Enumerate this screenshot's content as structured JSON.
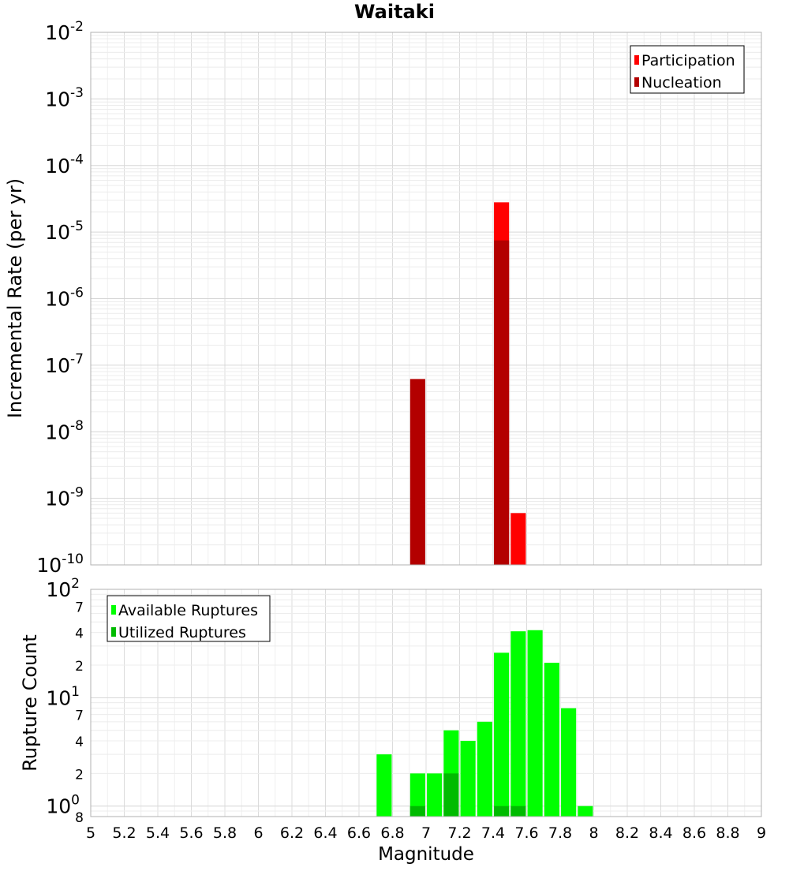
{
  "chart_data": [
    {
      "type": "bar",
      "title": "Waitaki",
      "xlabel": "",
      "ylabel": "Incremental Rate (per yr)",
      "y_scale": "log",
      "ylim": [
        1e-10,
        0.01
      ],
      "xlim": [
        5,
        9
      ],
      "grid": true,
      "legend_position": "top-right",
      "bar_width": 0.09,
      "y_tick_labels": [
        {
          "base": "10",
          "exp": "-10",
          "value": 1e-10
        },
        {
          "base": "10",
          "exp": "-9",
          "value": 1e-09
        },
        {
          "base": "10",
          "exp": "-8",
          "value": 1e-08
        },
        {
          "base": "10",
          "exp": "-7",
          "value": 1e-07
        },
        {
          "base": "10",
          "exp": "-6",
          "value": 1e-06
        },
        {
          "base": "10",
          "exp": "-5",
          "value": 1e-05
        },
        {
          "base": "10",
          "exp": "-4",
          "value": 0.0001
        },
        {
          "base": "10",
          "exp": "-3",
          "value": 0.001
        },
        {
          "base": "10",
          "exp": "-2",
          "value": 0.01
        }
      ],
      "series": [
        {
          "name": "Participation",
          "color": "#ff0000",
          "x": [
            7.45,
            7.55
          ],
          "values": [
            2.8e-05,
            6e-10
          ]
        },
        {
          "name": "Nucleation",
          "color": "#b30000",
          "x": [
            6.95,
            7.45
          ],
          "values": [
            6.2e-08,
            7.5e-06
          ]
        }
      ]
    },
    {
      "type": "bar",
      "title": "",
      "xlabel": "Magnitude",
      "ylabel": "Rupture Count",
      "y_scale": "log",
      "ylim": [
        0.8,
        100
      ],
      "xlim": [
        5,
        9
      ],
      "grid": true,
      "legend_position": "top-left",
      "bar_width": 0.09,
      "x_ticks": [
        "5",
        "5.2",
        "5.4",
        "5.6",
        "5.8",
        "6",
        "6.2",
        "6.4",
        "6.6",
        "6.8",
        "7",
        "7.2",
        "7.4",
        "7.6",
        "7.8",
        "8",
        "8.2",
        "8.4",
        "8.6",
        "8.8",
        "9"
      ],
      "y_major_labels": [
        {
          "base": "10",
          "exp": "0",
          "value": 1
        },
        {
          "base": "10",
          "exp": "1",
          "value": 10
        },
        {
          "base": "10",
          "exp": "2",
          "value": 100
        }
      ],
      "y_minor_labels": [
        {
          "label": "8",
          "value": 0.8
        },
        {
          "label": "2",
          "value": 2
        },
        {
          "label": "4",
          "value": 4
        },
        {
          "label": "7",
          "value": 7
        },
        {
          "label": "2",
          "value": 20
        },
        {
          "label": "4",
          "value": 40
        },
        {
          "label": "7",
          "value": 70
        }
      ],
      "series": [
        {
          "name": "Available Ruptures",
          "color": "#00ff00",
          "x": [
            6.75,
            6.95,
            7.05,
            7.15,
            7.25,
            7.35,
            7.45,
            7.55,
            7.65,
            7.75,
            7.85,
            7.95
          ],
          "values": [
            3,
            2,
            2,
            5,
            4,
            6,
            26,
            41,
            42,
            21,
            8,
            1
          ]
        },
        {
          "name": "Utilized Ruptures",
          "color": "#00bb00",
          "x": [
            6.95,
            7.15,
            7.45,
            7.55
          ],
          "values": [
            1,
            2,
            1,
            1
          ]
        }
      ]
    }
  ]
}
